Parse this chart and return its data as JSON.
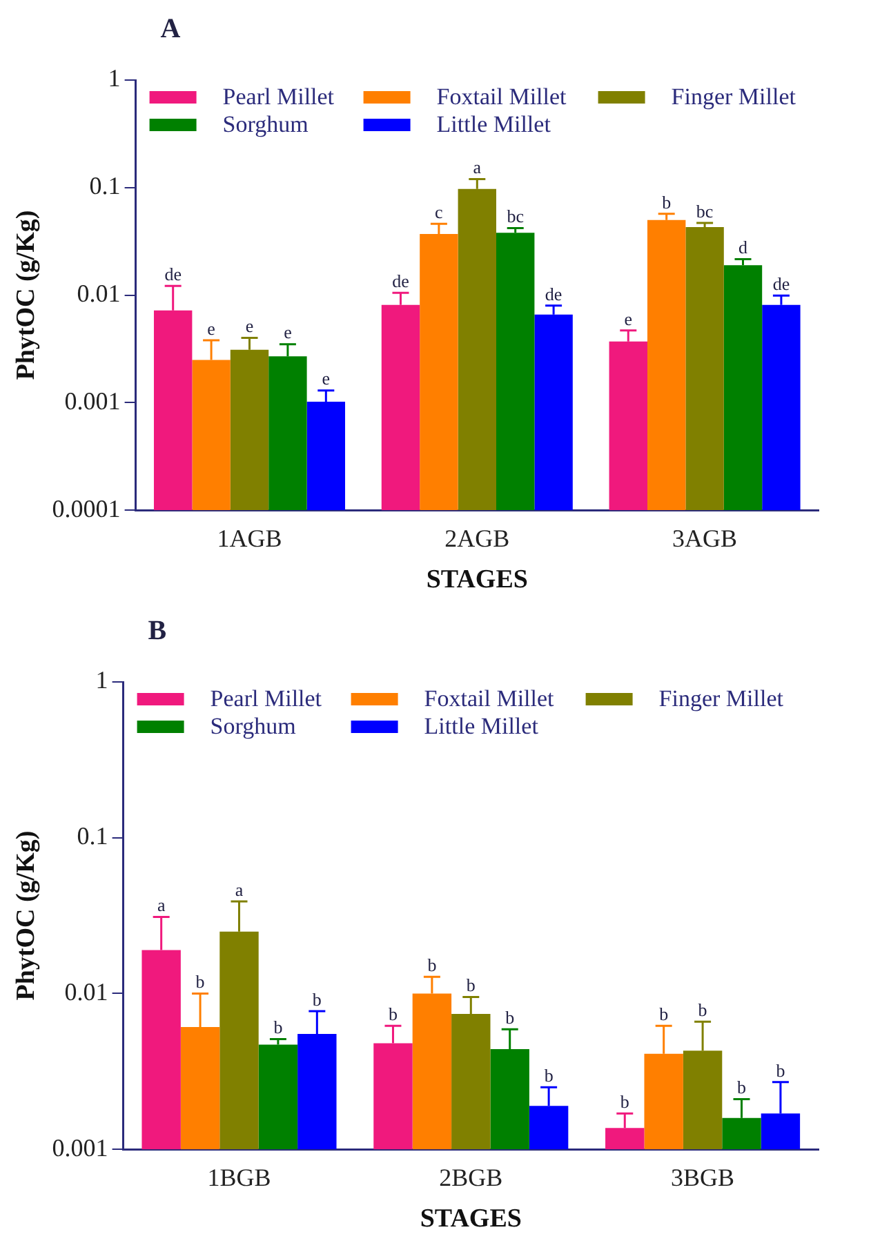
{
  "chart_data": [
    {
      "type": "bar",
      "title": "A",
      "xlabel": "STAGES",
      "ylabel": "PhytOC (g/Kg)",
      "categories": [
        "1AGB",
        "2AGB",
        "3AGB"
      ],
      "series": [
        {
          "name": "Pearl Millet",
          "color": "#f0197d",
          "values": [
            0.0072,
            0.0081,
            0.0037
          ],
          "errors": [
            [
              0.0072,
              0.0122
            ],
            [
              0.0081,
              0.0105
            ],
            [
              0.0037,
              0.0047
            ]
          ],
          "value_labels": [
            "de",
            "de",
            "e"
          ]
        },
        {
          "name": "Foxtail Millet",
          "color": "#ff7f00",
          "values": [
            0.0025,
            0.037,
            0.05
          ],
          "errors": [
            [
              0.0025,
              0.0038
            ],
            [
              0.037,
              0.046
            ],
            [
              0.05,
              0.057
            ]
          ],
          "value_labels": [
            "e",
            "c",
            "b"
          ]
        },
        {
          "name": "Finger Millet",
          "color": "#808000",
          "values": [
            0.0031,
            0.097,
            0.043
          ],
          "errors": [
            [
              0.0031,
              0.004
            ],
            [
              0.097,
              0.12
            ],
            [
              0.043,
              0.047
            ]
          ],
          "value_labels": [
            "e",
            "a",
            "bc"
          ]
        },
        {
          "name": "Sorghum",
          "color": "#008000",
          "values": [
            0.0027,
            0.038,
            0.019
          ],
          "errors": [
            [
              0.0027,
              0.0035
            ],
            [
              0.038,
              0.042
            ],
            [
              0.019,
              0.0216
            ]
          ],
          "value_labels": [
            "e",
            "bc",
            "d"
          ]
        },
        {
          "name": "Little Millet",
          "color": "#0000ff",
          "values": [
            0.00102,
            0.0066,
            0.0081
          ],
          "errors": [
            [
              0.00102,
              0.0013
            ],
            [
              0.0066,
              0.008
            ],
            [
              0.0081,
              0.0099
            ]
          ],
          "value_labels": [
            "e",
            "de",
            "de"
          ]
        }
      ],
      "ylim": [
        0.0001,
        1
      ],
      "yticks": [
        0.0001,
        0.001,
        0.01,
        0.1,
        1
      ],
      "log": true,
      "legend": "top",
      "grid": false
    },
    {
      "type": "bar",
      "title": "B",
      "xlabel": "STAGES",
      "ylabel": "PhytOC (g/Kg)",
      "categories": [
        "1BGB",
        "2BGB",
        "3BGB"
      ],
      "series": [
        {
          "name": "Pearl Millet",
          "color": "#f0197d",
          "values": [
            0.019,
            0.0048,
            0.00137
          ],
          "errors": [
            [
              0.019,
              0.031
            ],
            [
              0.0048,
              0.0062
            ],
            [
              0.00137,
              0.0017
            ]
          ],
          "value_labels": [
            "a",
            "b",
            "b"
          ]
        },
        {
          "name": "Foxtail Millet",
          "color": "#ff7f00",
          "values": [
            0.0061,
            0.01,
            0.0041
          ],
          "errors": [
            [
              0.0061,
              0.01
            ],
            [
              0.01,
              0.0128
            ],
            [
              0.0041,
              0.0062
            ]
          ],
          "value_labels": [
            "b",
            "b",
            "b"
          ]
        },
        {
          "name": "Finger Millet",
          "color": "#808000",
          "values": [
            0.025,
            0.0074,
            0.0043
          ],
          "errors": [
            [
              0.025,
              0.039
            ],
            [
              0.0074,
              0.0095
            ],
            [
              0.0043,
              0.0066
            ]
          ],
          "value_labels": [
            "a",
            "b",
            "b"
          ]
        },
        {
          "name": "Sorghum",
          "color": "#008000",
          "values": [
            0.0047,
            0.0044,
            0.00159
          ],
          "errors": [
            [
              0.0047,
              0.0051
            ],
            [
              0.0044,
              0.0059
            ],
            [
              0.00159,
              0.0021
            ]
          ],
          "value_labels": [
            "b",
            "b",
            "b"
          ]
        },
        {
          "name": "Little Millet",
          "color": "#0000ff",
          "values": [
            0.0055,
            0.0019,
            0.0017
          ],
          "errors": [
            [
              0.0055,
              0.0077
            ],
            [
              0.0019,
              0.0025
            ],
            [
              0.0017,
              0.0027
            ]
          ],
          "value_labels": [
            "b",
            "b",
            "b"
          ]
        }
      ],
      "ylim": [
        0.001,
        1
      ],
      "yticks": [
        0.001,
        0.01,
        0.1,
        1
      ],
      "log": true,
      "legend": "top",
      "grid": false
    }
  ]
}
